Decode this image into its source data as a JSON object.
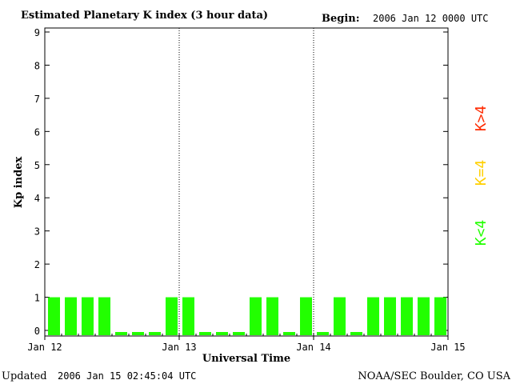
{
  "header": {
    "title": "Estimated Planetary K index (3 hour data)",
    "begin_label": "Begin:",
    "begin_value": "2006 Jan 12 0000 UTC"
  },
  "footer": {
    "updated_label": "Updated",
    "updated_value": "2006 Jan 15 02:45:04 UTC",
    "source": "NOAA/SEC Boulder, CO USA"
  },
  "legend": {
    "items": [
      {
        "label": "K>4",
        "color": "#ff2a00"
      },
      {
        "label": "K=4",
        "color": "#ffd000"
      },
      {
        "label": "K<4",
        "color": "#22ff00"
      }
    ]
  },
  "colors": {
    "bar_low": "#22ff00",
    "bar_mid": "#ffd000",
    "bar_high": "#ff2a00",
    "axis": "#000000"
  },
  "chart_data": {
    "type": "bar",
    "title": "Estimated Planetary K index (3 hour data)",
    "xlabel": "Universal Time",
    "ylabel": "Kp index",
    "ylim": [
      0,
      9
    ],
    "yticks": [
      0,
      1,
      2,
      3,
      4,
      5,
      6,
      7,
      8,
      9
    ],
    "xlim_days": [
      0,
      3
    ],
    "xticks": [
      {
        "day": 0,
        "label": "Jan 12"
      },
      {
        "day": 1,
        "label": "Jan 13"
      },
      {
        "day": 2,
        "label": "Jan 14"
      },
      {
        "day": 3,
        "label": "Jan 15"
      }
    ],
    "day_dividers": [
      1,
      2
    ],
    "bar_interval_hours": 3,
    "values": [
      1,
      1,
      1,
      1,
      0,
      0,
      0,
      1,
      1,
      0,
      0,
      0,
      1,
      1,
      0,
      1,
      0,
      1,
      0,
      1,
      1,
      1,
      1,
      1
    ],
    "grid": false
  }
}
